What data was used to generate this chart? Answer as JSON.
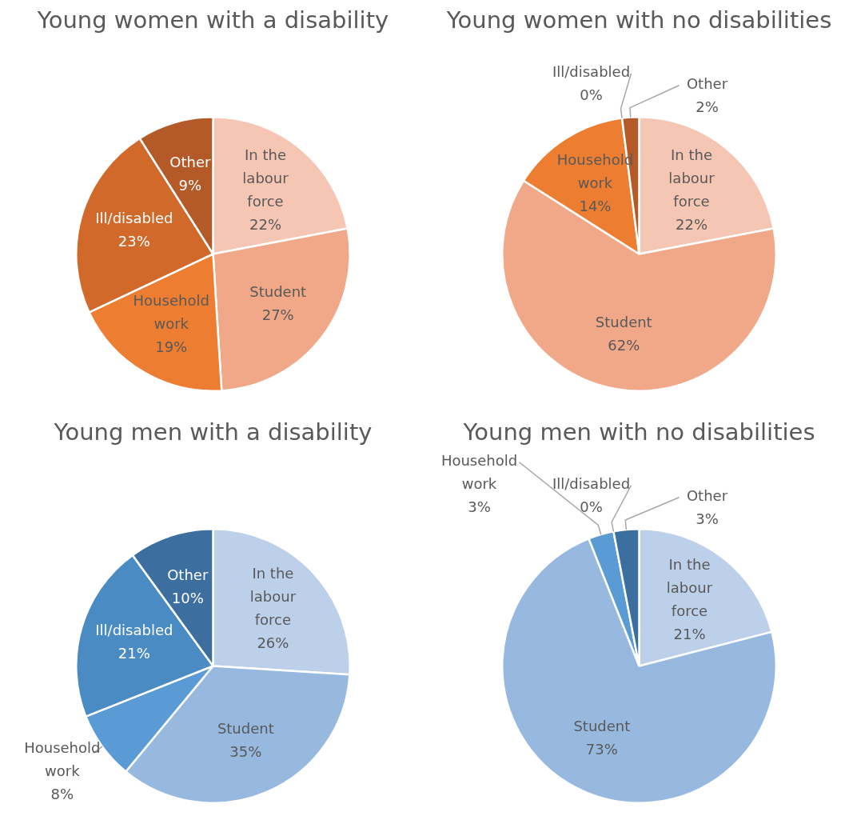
{
  "chart_data": [
    {
      "type": "pie",
      "title": "Young women with a disability",
      "categories": [
        "In the labour force",
        "Student",
        "Household work",
        "Ill/disabled",
        "Other"
      ],
      "values": [
        22,
        27,
        19,
        23,
        9
      ],
      "value_labels": [
        "22%",
        "27%",
        "19%",
        "23%",
        "9%"
      ],
      "colors": [
        "#f5c6b4",
        "#f0a888",
        "#ed7d31",
        "#d0692a",
        "#b35a28"
      ]
    },
    {
      "type": "pie",
      "title": "Young women with no disabilities",
      "categories": [
        "In the labour force",
        "Student",
        "Household work",
        "Ill/disabled",
        "Other"
      ],
      "values": [
        22,
        62,
        14,
        0,
        2
      ],
      "value_labels": [
        "22%",
        "62%",
        "14%",
        "0%",
        "2%"
      ],
      "colors": [
        "#f5c6b4",
        "#f0a888",
        "#ed7d31",
        "#d0692a",
        "#b35a28"
      ]
    },
    {
      "type": "pie",
      "title": "Young men with a disability",
      "categories": [
        "In the labour force",
        "Student",
        "Household work",
        "Ill/disabled",
        "Other"
      ],
      "values": [
        26,
        35,
        8,
        21,
        10
      ],
      "value_labels": [
        "26%",
        "35%",
        "8%",
        "21%",
        "10%"
      ],
      "colors": [
        "#bdd0ea",
        "#97b8df",
        "#5b9bd5",
        "#4b8bc4",
        "#3c6e9f"
      ]
    },
    {
      "type": "pie",
      "title": "Young men with no disabilities",
      "categories": [
        "In the labour force",
        "Student",
        "Household work",
        "Ill/disabled",
        "Other"
      ],
      "values": [
        21,
        73,
        3,
        0,
        3
      ],
      "value_labels": [
        "21%",
        "73%",
        "3%",
        "0%",
        "3%"
      ],
      "colors": [
        "#bdd0ea",
        "#97b8df",
        "#5b9bd5",
        "#4b8bc4",
        "#3c6e9f"
      ]
    }
  ]
}
